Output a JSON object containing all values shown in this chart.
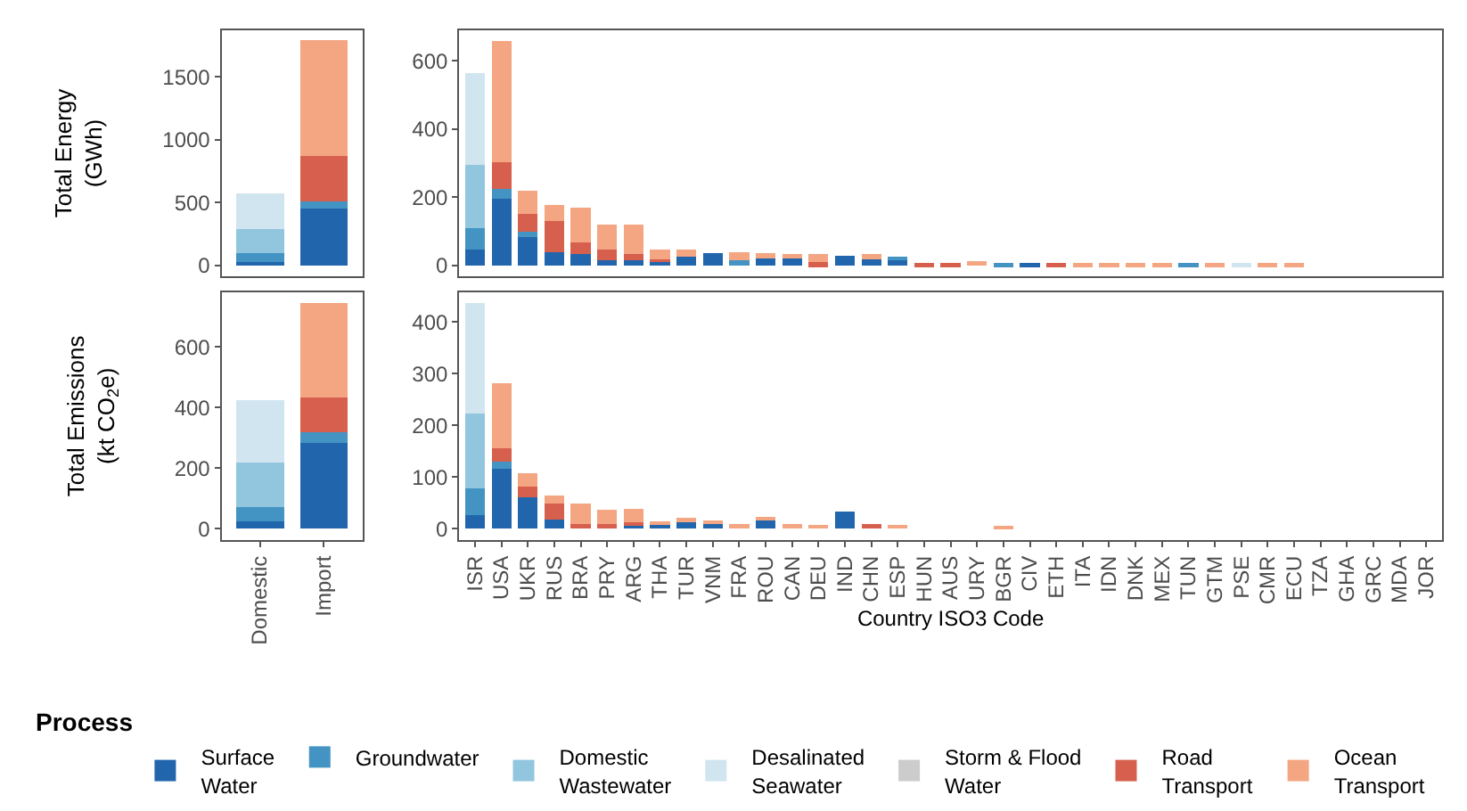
{
  "chart_data": [
    {
      "type": "bar",
      "stacked": true,
      "ylabel": "Total Energy\n(GWh)",
      "categories": [
        "Domestic",
        "Import"
      ],
      "ylim": [
        -89,
        1872
      ],
      "yticks": [
        0,
        500,
        1000,
        1500
      ],
      "tick_labels": "y",
      "legend": "bottom",
      "legend_title": "Process",
      "series": [
        {
          "name": "Surface\nWater",
          "color": "#2166ac",
          "values": [
            30,
            450
          ]
        },
        {
          "name": "Groundwater",
          "color": "#4393c3",
          "values": [
            70,
            60
          ]
        },
        {
          "name": "Domestic\nWastewater",
          "color": "#92c5de",
          "values": [
            190,
            0
          ]
        },
        {
          "name": "Desalinated\nSeawater",
          "color": "#d1e5f0",
          "values": [
            280,
            0
          ]
        },
        {
          "name": "Storm & Flood\nWater",
          "color": "#cccccc",
          "values": [
            0,
            0
          ]
        },
        {
          "name": "Road\nTransport",
          "color": "#d6604d",
          "values": [
            0,
            360
          ]
        },
        {
          "name": "Ocean\nTransport",
          "color": "#f4a582",
          "values": [
            0,
            920
          ]
        }
      ]
    },
    {
      "type": "bar",
      "stacked": true,
      "categories": [
        "ISR",
        "USA",
        "UKR",
        "RUS",
        "BRA",
        "PRY",
        "ARG",
        "THA",
        "TUR",
        "VNM",
        "FRA",
        "ROU",
        "CAN",
        "DEU",
        "IND",
        "CHN",
        "ESP",
        "HUN",
        "AUS",
        "URY",
        "BGR",
        "CIV",
        "ETH",
        "ITA",
        "IDN",
        "DNK",
        "MEX",
        "TUN",
        "GTM",
        "PSE",
        "CMR",
        "ECU",
        "TZA",
        "GHA",
        "GRC",
        "MDA",
        "JOR"
      ],
      "ylim": [
        -33,
        690
      ],
      "yticks": [
        0,
        200,
        400,
        600
      ],
      "tick_labels": "y",
      "series": [
        {
          "color": "#2166ac",
          "values": [
            45,
            194,
            88,
            38,
            34,
            14,
            14,
            12,
            26,
            36,
            0,
            26,
            19,
            0,
            28,
            17,
            19,
            0,
            0,
            0,
            0,
            8,
            0,
            0,
            0,
            0,
            0,
            0,
            0,
            0,
            0,
            0,
            0,
            0,
            0,
            0,
            0
          ]
        },
        {
          "color": "#4393c3",
          "values": [
            63,
            31,
            10,
            0,
            0,
            0,
            0,
            0,
            0,
            0,
            14,
            0,
            0,
            0,
            0,
            0,
            5,
            0,
            0,
            0,
            8,
            0,
            0,
            0,
            0,
            0,
            0,
            8,
            0,
            0,
            0,
            0,
            0,
            0,
            0,
            0,
            0
          ]
        },
        {
          "color": "#92c5de",
          "values": [
            186,
            0,
            0,
            0,
            0,
            0,
            0,
            0,
            0,
            0,
            0,
            0,
            0,
            0,
            0,
            0,
            0,
            0,
            0,
            0,
            0,
            0,
            0,
            0,
            0,
            0,
            0,
            0,
            0,
            0,
            0,
            0,
            0,
            0,
            0,
            0,
            0
          ]
        },
        {
          "color": "#d1e5f0",
          "values": [
            270,
            0,
            0,
            0,
            0,
            0,
            0,
            0,
            0,
            0,
            0,
            0,
            0,
            0,
            0,
            0,
            0,
            0,
            0,
            0,
            0,
            0,
            0,
            0,
            0,
            0,
            0,
            0,
            0,
            8,
            0,
            0,
            0,
            0,
            0,
            0,
            0
          ]
        },
        {
          "color": "#cccccc",
          "values": [
            0,
            0,
            0,
            0,
            0,
            0,
            0,
            0,
            0,
            0,
            0,
            0,
            0,
            0,
            0,
            0,
            0,
            0,
            0,
            0,
            0,
            0,
            0,
            0,
            0,
            0,
            0,
            0,
            0,
            0,
            0,
            0,
            0,
            0,
            0,
            0,
            0
          ]
        },
        {
          "color": "#d6604d",
          "values": [
            0,
            78,
            53,
            93,
            33,
            32,
            20,
            5,
            0,
            0,
            0,
            0,
            0,
            10,
            0,
            0,
            0,
            8,
            8,
            0,
            0,
            0,
            8,
            0,
            0,
            0,
            0,
            0,
            0,
            0,
            0,
            0,
            0,
            0,
            0,
            0,
            0
          ]
        },
        {
          "color": "#f4a582",
          "values": [
            0,
            354,
            69,
            46,
            102,
            74,
            86,
            29,
            20,
            0,
            24,
            10,
            15,
            24,
            0,
            17,
            0,
            0,
            0,
            12,
            0,
            0,
            0,
            8,
            8,
            8,
            8,
            0,
            8,
            0,
            8,
            8,
            0,
            0,
            0,
            0,
            0
          ]
        }
      ]
    },
    {
      "type": "bar",
      "stacked": true,
      "ylabel": "Total Emissions\n(kt CO$_{2}$e)",
      "categories": [
        "Domestic",
        "Import"
      ],
      "ylim": [
        -37,
        782
      ],
      "yticks": [
        0,
        200,
        400,
        600
      ],
      "series": [
        {
          "color": "#2166ac",
          "values": [
            24,
            285
          ]
        },
        {
          "color": "#4393c3",
          "values": [
            48,
            34
          ]
        },
        {
          "color": "#92c5de",
          "values": [
            147,
            0
          ]
        },
        {
          "color": "#d1e5f0",
          "values": [
            206,
            0
          ]
        },
        {
          "color": "#cccccc",
          "values": [
            0,
            0
          ]
        },
        {
          "color": "#d6604d",
          "values": [
            0,
            115
          ]
        },
        {
          "color": "#f4a582",
          "values": [
            0,
            311
          ]
        }
      ]
    },
    {
      "type": "bar",
      "stacked": true,
      "xlabel": "Country ISO3 Code",
      "categories": [
        "ISR",
        "USA",
        "UKR",
        "RUS",
        "BRA",
        "PRY",
        "ARG",
        "THA",
        "TUR",
        "VNM",
        "FRA",
        "ROU",
        "CAN",
        "DEU",
        "IND",
        "CHN",
        "ESP",
        "HUN",
        "AUS",
        "URY",
        "BGR",
        "CIV",
        "ETH",
        "ITA",
        "IDN",
        "DNK",
        "MEX",
        "TUN",
        "GTM",
        "PSE",
        "CMR",
        "ECU",
        "TZA",
        "GHA",
        "GRC",
        "MDA",
        "JOR"
      ],
      "ylim": [
        -22,
        458
      ],
      "yticks": [
        0,
        100,
        200,
        300,
        400
      ],
      "series": [
        {
          "color": "#2166ac",
          "values": [
            27,
            116,
            60,
            17,
            0,
            0,
            7,
            7,
            16,
            12,
            0,
            19,
            0,
            0,
            34,
            0,
            0,
            0,
            0,
            0,
            0,
            0,
            0,
            0,
            0,
            0,
            0,
            0,
            0,
            0,
            0,
            0,
            0,
            0,
            0,
            0,
            0
          ]
        },
        {
          "color": "#4393c3",
          "values": [
            51,
            13,
            0,
            0,
            0,
            0,
            0,
            0,
            0,
            0,
            0,
            0,
            0,
            0,
            0,
            0,
            0,
            0,
            0,
            0,
            0,
            0,
            0,
            0,
            0,
            0,
            0,
            0,
            0,
            0,
            0,
            0,
            0,
            0,
            0,
            0,
            0
          ]
        },
        {
          "color": "#92c5de",
          "values": [
            145,
            0,
            0,
            0,
            0,
            0,
            0,
            0,
            0,
            0,
            0,
            0,
            0,
            0,
            0,
            0,
            0,
            0,
            0,
            0,
            0,
            0,
            0,
            0,
            0,
            0,
            0,
            0,
            0,
            0,
            0,
            0,
            0,
            0,
            0,
            0,
            0
          ]
        },
        {
          "color": "#d1e5f0",
          "values": [
            213,
            0,
            0,
            0,
            0,
            0,
            0,
            0,
            0,
            0,
            0,
            0,
            0,
            0,
            0,
            0,
            0,
            0,
            0,
            0,
            0,
            0,
            0,
            0,
            0,
            0,
            0,
            0,
            0,
            0,
            0,
            0,
            0,
            0,
            0,
            0,
            0
          ]
        },
        {
          "color": "#cccccc",
          "values": [
            0,
            0,
            0,
            0,
            0,
            0,
            0,
            0,
            0,
            0,
            0,
            0,
            0,
            0,
            0,
            0,
            0,
            0,
            0,
            0,
            0,
            0,
            0,
            0,
            0,
            0,
            0,
            0,
            0,
            0,
            0,
            0,
            0,
            0,
            0,
            0,
            0
          ]
        },
        {
          "color": "#d6604d",
          "values": [
            0,
            26,
            21,
            32,
            9,
            9,
            5,
            0,
            0,
            0,
            0,
            0,
            0,
            0,
            0,
            9,
            0,
            0,
            0,
            0,
            0,
            0,
            0,
            0,
            0,
            0,
            0,
            0,
            0,
            0,
            0,
            0,
            0,
            0,
            0,
            0,
            0
          ]
        },
        {
          "color": "#f4a582",
          "values": [
            0,
            126,
            26,
            16,
            40,
            28,
            27,
            8,
            6,
            3,
            10,
            3,
            9,
            7,
            0,
            0,
            7,
            0,
            0,
            0,
            5,
            0,
            0,
            0,
            0,
            0,
            0,
            0,
            0,
            0,
            0,
            0,
            0,
            0,
            0,
            0,
            0
          ]
        }
      ]
    }
  ]
}
